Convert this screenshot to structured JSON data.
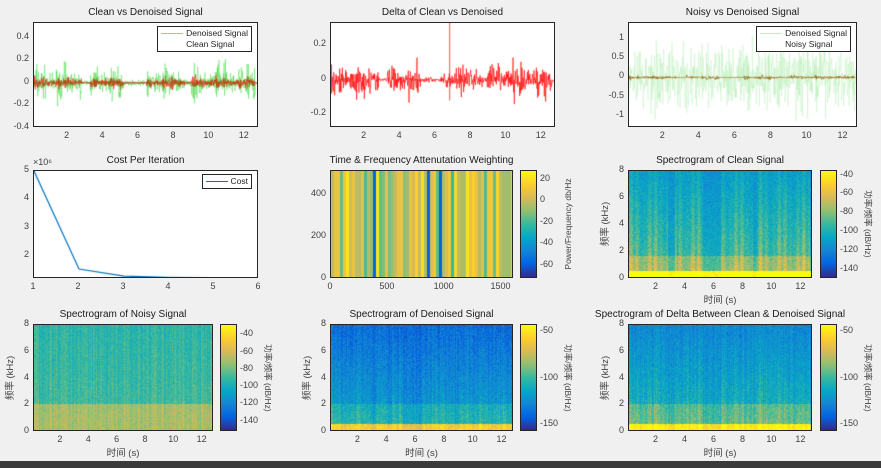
{
  "colors": {
    "denoised": "#ff0000",
    "clean": "#00cc00",
    "noisy": "#66dd66",
    "denoised_dark": "#8a5a00",
    "cost": "#0072bd"
  },
  "chart_data": [
    {
      "type": "line",
      "title": "Clean vs Denoised Signal",
      "xlabel": "",
      "ylabel": "",
      "xlim": [
        0.1,
        12.8
      ],
      "ylim": [
        -0.4,
        0.53
      ],
      "xticks": [
        2,
        4,
        6,
        8,
        10,
        12
      ],
      "yticks": [
        -0.4,
        -0.2,
        0,
        0.2,
        0.4
      ],
      "legend": [
        "Denoised Signal",
        "Clean Signal"
      ],
      "legend_placement": "top-right",
      "series": [
        {
          "name": "Denoised Signal",
          "peak": 0.12
        },
        {
          "name": "Clean Signal",
          "peak": 0.38
        }
      ]
    },
    {
      "type": "line",
      "title": "Delta of Clean vs Denoised",
      "xlabel": "",
      "ylabel": "",
      "xlim": [
        0.1,
        12.8
      ],
      "ylim": [
        -0.28,
        0.33
      ],
      "xticks": [
        2,
        4,
        6,
        8,
        10,
        12
      ],
      "yticks": [
        -0.2,
        0,
        0.2
      ],
      "series": [
        {
          "name": "Delta",
          "peak": 0.3
        }
      ]
    },
    {
      "type": "line",
      "title": "Noisy vs Denoised Signal",
      "xlabel": "",
      "ylabel": "",
      "xlim": [
        0.1,
        12.8
      ],
      "ylim": [
        -1.3,
        1.4
      ],
      "xticks": [
        2,
        4,
        6,
        8,
        10,
        12
      ],
      "yticks": [
        -1,
        -0.5,
        0,
        0.5,
        1
      ],
      "legend": [
        "Denoised Signal",
        "Noisy Signal"
      ],
      "legend_placement": "top-right",
      "series": [
        {
          "name": "Denoised Signal",
          "peak": 0.12
        },
        {
          "name": "Noisy Signal",
          "peak": 1.3
        }
      ]
    },
    {
      "type": "line",
      "title": "Cost Per Iteration",
      "xlabel": "",
      "ylabel": "",
      "xlim": [
        1,
        6
      ],
      "ylim": [
        1.2,
        5
      ],
      "y_exponent": "×10⁶",
      "xticks": [
        1,
        2,
        3,
        4,
        5,
        6
      ],
      "yticks": [
        2,
        3,
        4,
        5
      ],
      "legend": [
        "Cost"
      ],
      "legend_placement": "top-right",
      "series": [
        {
          "name": "Cost",
          "x": [
            1,
            2,
            3,
            4,
            5,
            6
          ],
          "y": [
            5.0,
            1.55,
            1.3,
            1.26,
            1.25,
            1.25
          ]
        }
      ]
    },
    {
      "type": "heatmap",
      "title": "Time & Frequency Attenutation Weighting",
      "xlabel": "",
      "ylabel": "",
      "xlim": [
        0,
        1610
      ],
      "ylim": [
        0,
        513
      ],
      "xticks": [
        0,
        500,
        1000,
        1500
      ],
      "yticks": [
        0,
        200,
        400
      ],
      "colorbar": {
        "label": "Power/Frequency db/Hz",
        "range": [
          -72,
          28
        ],
        "ticks": [
          -60,
          -40,
          -20,
          0,
          20
        ]
      }
    },
    {
      "type": "heatmap",
      "title": "Spectrogram of Clean Signal",
      "xlabel": "时间 (s)",
      "ylabel": "频率 (kHz)",
      "xlim": [
        0.1,
        12.8
      ],
      "ylim": [
        0,
        8
      ],
      "xticks": [
        2,
        4,
        6,
        8,
        10,
        12
      ],
      "yticks": [
        0,
        2,
        4,
        6,
        8
      ],
      "colorbar": {
        "label": "功率/频率 (dB/Hz)",
        "range": [
          -150,
          -35
        ],
        "ticks": [
          -140,
          -120,
          -100,
          -80,
          -60,
          -40
        ]
      }
    },
    {
      "type": "heatmap",
      "title": "Spectrogram of Noisy Signal",
      "xlabel": "时间 (s)",
      "ylabel": "频率 (kHz)",
      "xlim": [
        0.1,
        12.8
      ],
      "ylim": [
        0,
        8
      ],
      "xticks": [
        2,
        4,
        6,
        8,
        10,
        12
      ],
      "yticks": [
        0,
        2,
        4,
        6,
        8
      ],
      "colorbar": {
        "label": "功率/频率 (dB/Hz)",
        "range": [
          -152,
          -28
        ],
        "ticks": [
          -140,
          -120,
          -100,
          -80,
          -60,
          -40
        ]
      }
    },
    {
      "type": "heatmap",
      "title": "Spectrogram of Denoised Signal",
      "xlabel": "时间 (s)",
      "ylabel": "频率 (kHz)",
      "xlim": [
        0.1,
        12.8
      ],
      "ylim": [
        0,
        8
      ],
      "xticks": [
        2,
        4,
        6,
        8,
        10,
        12
      ],
      "yticks": [
        0,
        2,
        4,
        6,
        8
      ],
      "colorbar": {
        "label": "功率/频率 (dB/Hz)",
        "range": [
          -158,
          -42
        ],
        "ticks": [
          -150,
          -100,
          -50
        ]
      }
    },
    {
      "type": "heatmap",
      "title": "Spectrogram of Delta Between Clean & Denoised Signal",
      "xlabel": "时间 (s)",
      "ylabel": "频率 (kHz)",
      "xlim": [
        0.1,
        12.8
      ],
      "ylim": [
        0,
        8
      ],
      "xticks": [
        2,
        4,
        6,
        8,
        10,
        12
      ],
      "yticks": [
        0,
        2,
        4,
        6,
        8
      ],
      "colorbar": {
        "label": "功率/频率 (dB/Hz)",
        "range": [
          -158,
          -42
        ],
        "ticks": [
          -150,
          -100,
          -50
        ]
      }
    }
  ]
}
